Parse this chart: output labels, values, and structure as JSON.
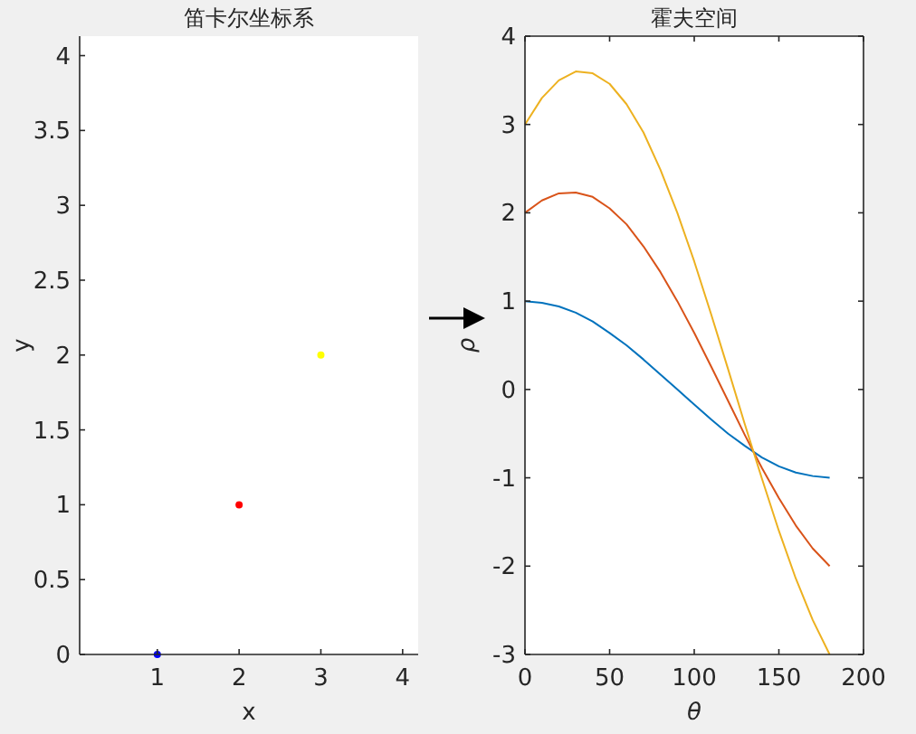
{
  "chart_data": [
    {
      "type": "scatter",
      "title": "笛卡尔坐标系",
      "xlabel": "x",
      "ylabel": "y",
      "x": [
        1,
        2,
        3
      ],
      "values": [
        0,
        1,
        2
      ],
      "colors": [
        "#0000ff",
        "#ff0000",
        "#ffff00"
      ],
      "marker": "circle",
      "xlim": [
        0.05,
        4.19
      ],
      "ylim": [
        0,
        4.13
      ],
      "xticks": [
        1,
        2,
        3,
        4
      ],
      "yticks": [
        0,
        0.5,
        1,
        1.5,
        2,
        2.5,
        3,
        3.5,
        4
      ],
      "grid": false
    },
    {
      "type": "line",
      "title": "霍夫空间",
      "xlabel": "θ",
      "ylabel": "ρ",
      "x": [
        0,
        10,
        20,
        30,
        40,
        50,
        60,
        70,
        80,
        90,
        100,
        110,
        120,
        130,
        140,
        150,
        160,
        170,
        180
      ],
      "xlim": [
        0,
        200
      ],
      "ylim": [
        -3,
        4
      ],
      "xticks": [
        0,
        50,
        100,
        150,
        200
      ],
      "yticks": [
        -3,
        -2,
        -1,
        0,
        1,
        2,
        3,
        4
      ],
      "grid": false,
      "line_style": "solid",
      "marker": "none",
      "series": [
        {
          "color": "#0072bd",
          "values": [
            1,
            0.98,
            0.94,
            0.87,
            0.77,
            0.64,
            0.5,
            0.34,
            0.17,
            0,
            -0.17,
            -0.34,
            -0.5,
            -0.64,
            -0.77,
            -0.87,
            -0.94,
            -0.98,
            -1
          ]
        },
        {
          "color": "#d95319",
          "values": [
            2,
            2.14,
            2.22,
            2.23,
            2.18,
            2.05,
            1.87,
            1.62,
            1.33,
            1,
            0.64,
            0.26,
            -0.13,
            -0.52,
            -0.89,
            -1.23,
            -1.54,
            -1.8,
            -2
          ]
        },
        {
          "color": "#edb120",
          "values": [
            3,
            3.3,
            3.5,
            3.6,
            3.58,
            3.46,
            3.23,
            2.91,
            2.49,
            2,
            1.45,
            0.85,
            0.23,
            -0.4,
            -1.01,
            -1.6,
            -2.14,
            -2.61,
            -3
          ]
        }
      ]
    }
  ]
}
